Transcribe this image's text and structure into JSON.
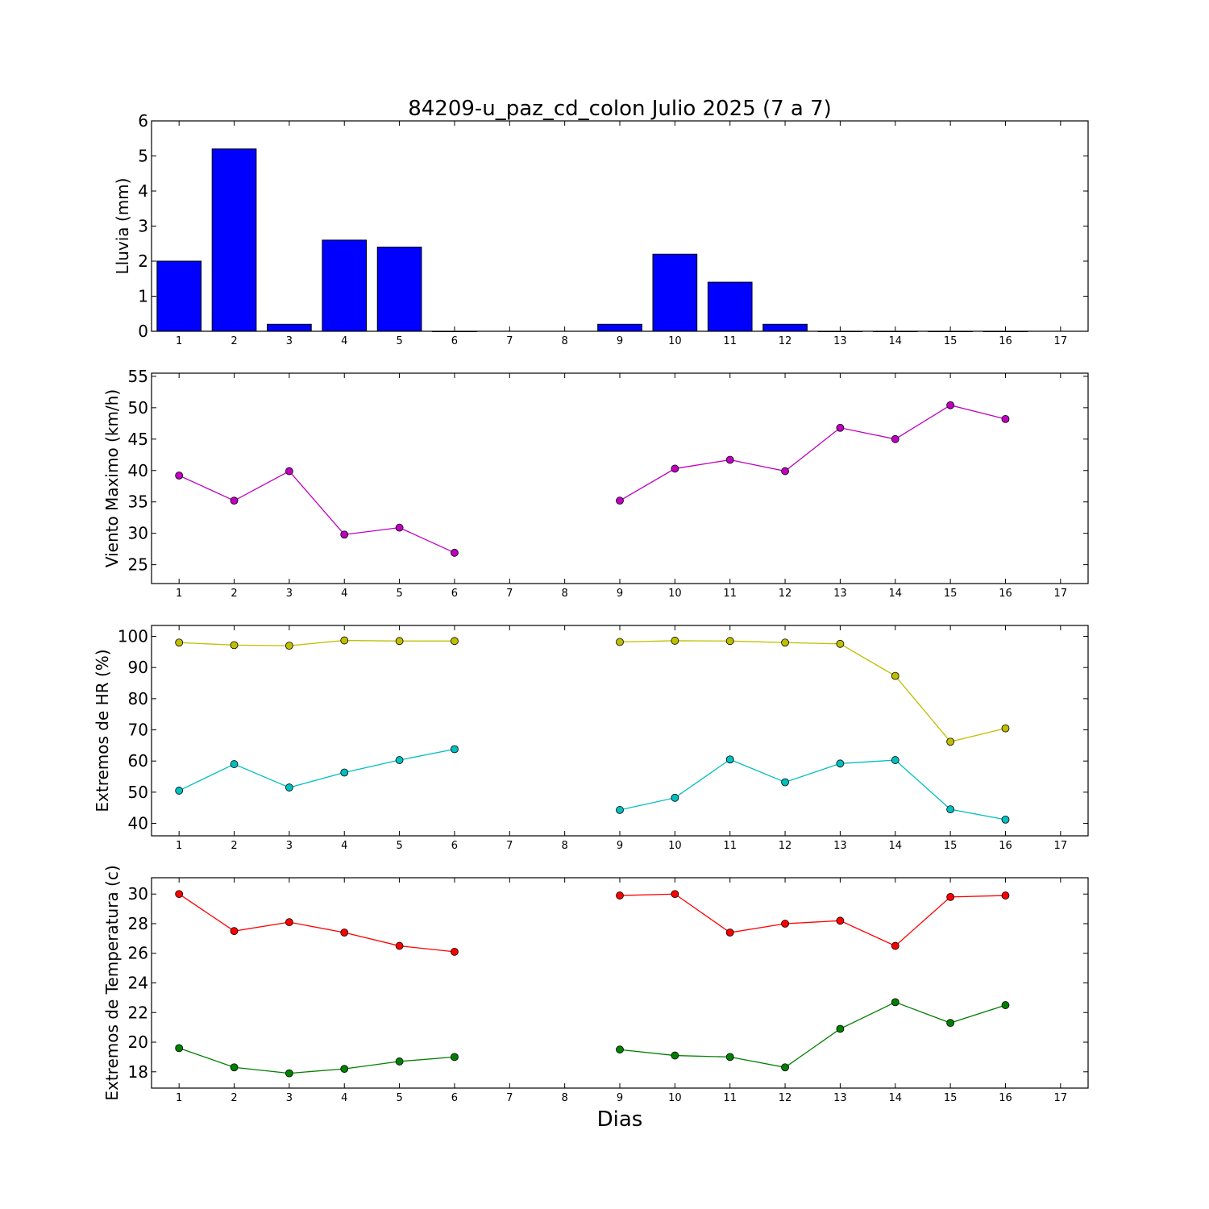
{
  "chart_data": [
    {
      "type": "bar",
      "title": "84209-u_paz_cd_colon Julio 2025  (7 a 7)",
      "xlabel": "",
      "ylabel": "Lluvia (mm)",
      "categories": [
        1,
        2,
        3,
        4,
        5,
        6,
        7,
        8,
        9,
        10,
        11,
        12,
        13,
        14,
        15,
        16,
        17
      ],
      "x_ticks": [
        "1",
        "2",
        "3",
        "4",
        "5",
        "6",
        "7",
        "8",
        "9",
        "10",
        "11",
        "12",
        "13",
        "14",
        "15",
        "16",
        "17"
      ],
      "xlim": [
        0.5,
        17.5
      ],
      "ylim": [
        0,
        6
      ],
      "y_ticks": [
        0,
        1,
        2,
        3,
        4,
        5,
        6
      ],
      "values": [
        2.0,
        5.2,
        0.2,
        2.6,
        2.4,
        0,
        null,
        null,
        0.2,
        2.2,
        1.4,
        0.2,
        0,
        0,
        0,
        0,
        null
      ],
      "colors": {
        "bar": "#0000ff",
        "edge": "#000000"
      },
      "grid": false
    },
    {
      "type": "line",
      "xlabel": "",
      "ylabel": "Viento Maximo (km/h)",
      "x": [
        1,
        2,
        3,
        4,
        5,
        6,
        7,
        8,
        9,
        10,
        11,
        12,
        13,
        14,
        15,
        16
      ],
      "x_ticks": [
        "1",
        "2",
        "3",
        "4",
        "5",
        "6",
        "7",
        "8",
        "9",
        "10",
        "11",
        "12",
        "13",
        "14",
        "15",
        "16",
        "17"
      ],
      "xlim": [
        0.5,
        17.5
      ],
      "ylim": [
        22,
        55.5
      ],
      "y_ticks": [
        25,
        30,
        35,
        40,
        45,
        50,
        55
      ],
      "series": [
        {
          "values": [
            39.2,
            35.2,
            39.9,
            29.8,
            30.9,
            26.9,
            null,
            null,
            35.2,
            40.3,
            41.7,
            39.9,
            46.8,
            45.0,
            50.4,
            48.2
          ],
          "color": "#bf00bf"
        }
      ],
      "grid": false
    },
    {
      "type": "line",
      "xlabel": "",
      "ylabel": "Extremos de HR (%)",
      "x": [
        1,
        2,
        3,
        4,
        5,
        6,
        7,
        8,
        9,
        10,
        11,
        12,
        13,
        14,
        15,
        16
      ],
      "x_ticks": [
        "1",
        "2",
        "3",
        "4",
        "5",
        "6",
        "7",
        "8",
        "9",
        "10",
        "11",
        "12",
        "13",
        "14",
        "15",
        "16",
        "17"
      ],
      "xlim": [
        0.5,
        17.5
      ],
      "ylim": [
        36,
        103.5
      ],
      "y_ticks": [
        40,
        50,
        60,
        70,
        80,
        90,
        100
      ],
      "series": [
        {
          "values": [
            98.0,
            97.2,
            97.0,
            98.7,
            98.5,
            98.5,
            null,
            null,
            98.2,
            98.6,
            98.5,
            98.0,
            97.6,
            87.3,
            66.2,
            70.5
          ],
          "color": "#bfbf00"
        },
        {
          "values": [
            50.5,
            59.0,
            51.5,
            56.3,
            60.3,
            63.8,
            null,
            null,
            44.3,
            48.2,
            60.5,
            53.2,
            59.2,
            60.3,
            44.5,
            41.2
          ],
          "color": "#00bfbf"
        }
      ],
      "grid": false
    },
    {
      "type": "line",
      "xlabel": "Dias",
      "ylabel": "Extremos de Temperatura (c)",
      "x": [
        1,
        2,
        3,
        4,
        5,
        6,
        7,
        8,
        9,
        10,
        11,
        12,
        13,
        14,
        15,
        16
      ],
      "x_ticks": [
        "1",
        "2",
        "3",
        "4",
        "5",
        "6",
        "7",
        "8",
        "9",
        "10",
        "11",
        "12",
        "13",
        "14",
        "15",
        "16",
        "17"
      ],
      "xlim": [
        0.5,
        17.5
      ],
      "ylim": [
        16.9,
        31.1
      ],
      "y_ticks": [
        18,
        20,
        22,
        24,
        26,
        28,
        30
      ],
      "series": [
        {
          "values": [
            30.0,
            27.5,
            28.1,
            27.4,
            26.5,
            26.1,
            null,
            null,
            29.9,
            30.0,
            27.4,
            28.0,
            28.2,
            26.5,
            29.8,
            29.9
          ],
          "color": "#ff0000"
        },
        {
          "values": [
            19.6,
            18.3,
            17.9,
            18.2,
            18.7,
            19.0,
            null,
            null,
            19.5,
            19.1,
            19.0,
            18.3,
            20.9,
            22.7,
            21.3,
            22.5
          ],
          "color": "#008000"
        }
      ],
      "grid": false
    }
  ]
}
